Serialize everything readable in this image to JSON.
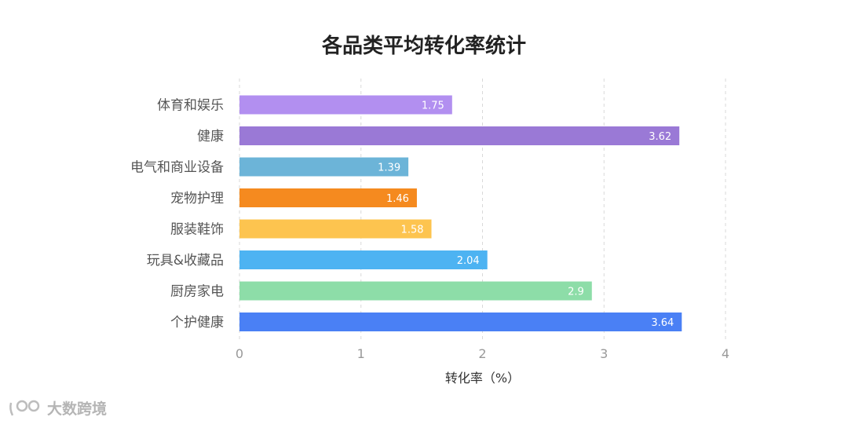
{
  "chart_data": {
    "type": "bar",
    "orientation": "horizontal",
    "title": "各品类平均转化率统计",
    "xlabel": "转化率（%）",
    "xlim": [
      0,
      4
    ],
    "xticks": [
      "0",
      "1",
      "2",
      "3",
      "4"
    ],
    "grid": "vertical-dashed",
    "categories": [
      "体育和娱乐",
      "健康",
      "电气和商业设备",
      "宠物护理",
      "服装鞋饰",
      "玩具&收藏品",
      "厨房家电",
      "个护健康"
    ],
    "values": [
      1.75,
      3.62,
      1.39,
      1.46,
      1.58,
      2.04,
      2.9,
      3.64
    ],
    "value_labels": [
      "1.75",
      "3.62",
      "1.39",
      "1.46",
      "1.58",
      "2.04",
      "2.9",
      "3.64"
    ],
    "colors": [
      "#b28ff0",
      "#9a79d6",
      "#6cb4d8",
      "#f58a1f",
      "#fdc44f",
      "#4db3f2",
      "#8ddda8",
      "#4a80f5"
    ]
  },
  "watermark": {
    "text": "大数跨境",
    "icon": "brand-logo-icon"
  }
}
